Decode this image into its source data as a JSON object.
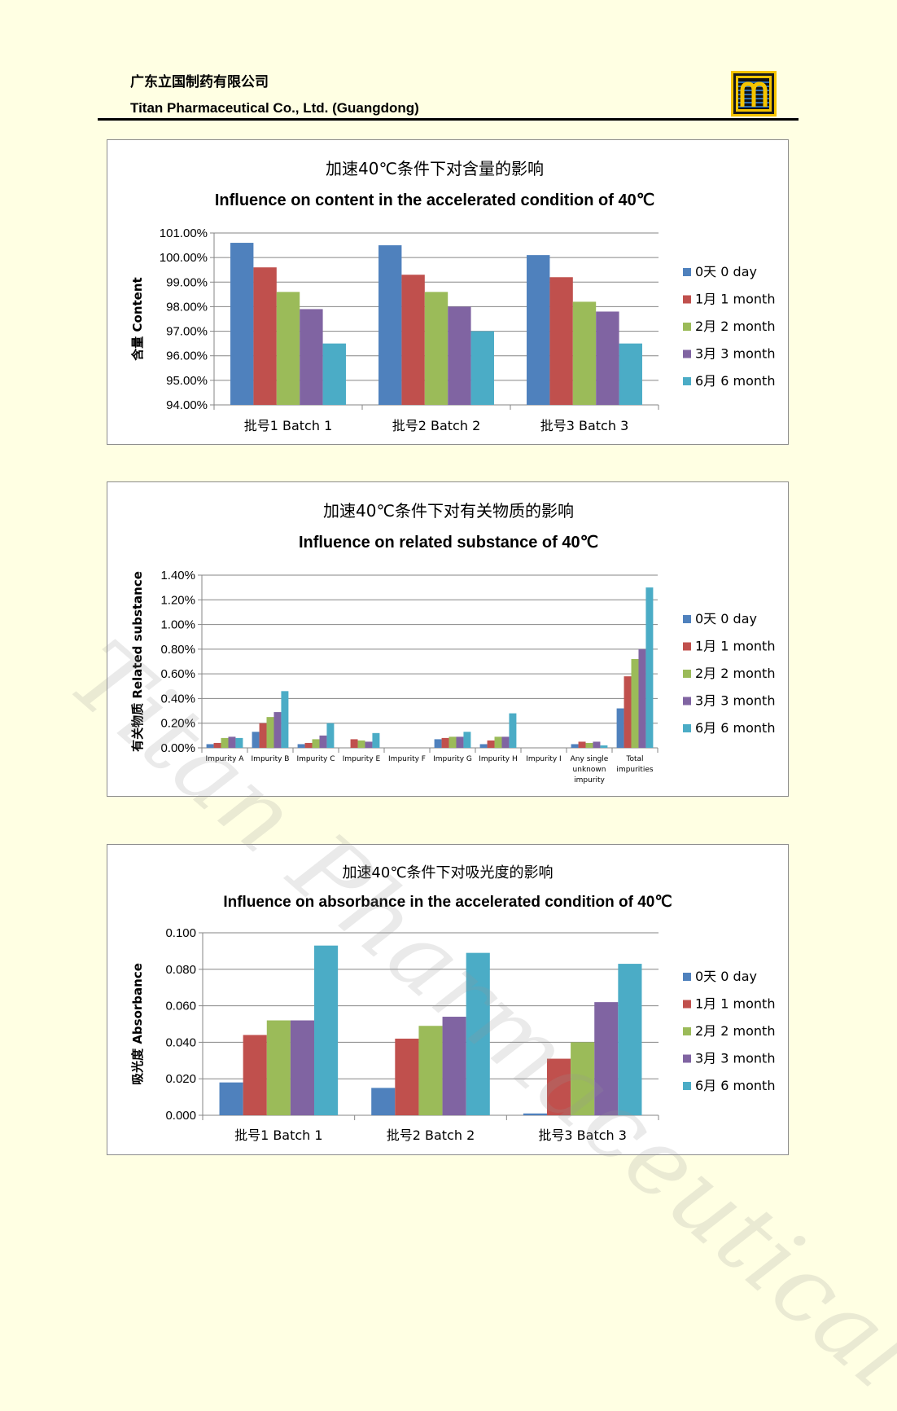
{
  "header": {
    "company_cn": "广东立国制药有限公司",
    "company_en": "Titan Pharmaceutical Co., Ltd. (Guangdong)"
  },
  "watermark": "Titan Pharmaceutical",
  "colors": [
    "#4F81BD",
    "#C0504D",
    "#9BBB59",
    "#8064A2",
    "#4BACC6"
  ],
  "chart_data": [
    {
      "type": "bar",
      "title": "加速40℃条件下对含量的影响",
      "subtitle": "Influence on content in the accelerated condition of 40℃",
      "ylabel": "含量 Content",
      "ylim": [
        94,
        101
      ],
      "yticks": [
        "94.00%",
        "95.00%",
        "96.00%",
        "97.00%",
        "98.00%",
        "99.00%",
        "100.00%",
        "101.00%"
      ],
      "categories": [
        "批号1 Batch 1",
        "批号2 Batch 2",
        "批号3 Batch 3"
      ],
      "legend_position": "right",
      "grid": true,
      "series": [
        {
          "name": "0天 0 day",
          "values": [
            100.6,
            100.5,
            100.1
          ]
        },
        {
          "name": "1月 1 month",
          "values": [
            99.6,
            99.3,
            99.2
          ]
        },
        {
          "name": "2月 2 month",
          "values": [
            98.6,
            98.6,
            98.2
          ]
        },
        {
          "name": "3月 3 month",
          "values": [
            97.9,
            98.0,
            97.8
          ]
        },
        {
          "name": "6月 6 month",
          "values": [
            96.5,
            97.0,
            96.5
          ]
        }
      ]
    },
    {
      "type": "bar",
      "title": "加速40℃条件下对有关物质的影响",
      "subtitle": "Influence on related substance of 40℃",
      "ylabel": "有关物质 Related substance",
      "ylim": [
        0,
        1.4
      ],
      "yticks": [
        "0.00%",
        "0.20%",
        "0.40%",
        "0.60%",
        "0.80%",
        "1.00%",
        "1.20%",
        "1.40%"
      ],
      "categories": [
        "Impurity A",
        "Impurity B",
        "Impurity C",
        "Impurity E",
        "Impurity F",
        "Impurity G",
        "Impurity H",
        "Impurity I",
        "Any single unknown impurity",
        "Total impurities"
      ],
      "legend_position": "right",
      "grid": true,
      "series": [
        {
          "name": "0天 0 day",
          "values": [
            0.03,
            0.13,
            0.03,
            0.0,
            0.0,
            0.07,
            0.03,
            0.0,
            0.03,
            0.32
          ]
        },
        {
          "name": "1月 1 month",
          "values": [
            0.04,
            0.2,
            0.04,
            0.07,
            0.0,
            0.08,
            0.06,
            0.0,
            0.05,
            0.58
          ]
        },
        {
          "name": "2月 2 month",
          "values": [
            0.08,
            0.25,
            0.07,
            0.06,
            0.0,
            0.09,
            0.09,
            0.0,
            0.04,
            0.72
          ]
        },
        {
          "name": "3月 3 month",
          "values": [
            0.09,
            0.29,
            0.1,
            0.05,
            0.0,
            0.09,
            0.09,
            0.0,
            0.05,
            0.8
          ]
        },
        {
          "name": "6月 6 month",
          "values": [
            0.08,
            0.46,
            0.2,
            0.12,
            0.0,
            0.13,
            0.28,
            0.0,
            0.02,
            1.3
          ]
        }
      ]
    },
    {
      "type": "bar",
      "title": "加速40℃条件下对吸光度的影响",
      "subtitle": "Influence on absorbance in the accelerated condition of 40℃",
      "ylabel": "吸光度 Absorbance",
      "ylim": [
        0,
        0.1
      ],
      "yticks": [
        "0.000",
        "0.020",
        "0.040",
        "0.060",
        "0.080",
        "0.100"
      ],
      "categories": [
        "批号1 Batch 1",
        "批号2 Batch 2",
        "批号3 Batch 3"
      ],
      "legend_position": "right",
      "grid": true,
      "series": [
        {
          "name": "0天 0 day",
          "values": [
            0.018,
            0.015,
            0.001
          ]
        },
        {
          "name": "1月 1 month",
          "values": [
            0.044,
            0.042,
            0.031
          ]
        },
        {
          "name": "2月 2 month",
          "values": [
            0.052,
            0.049,
            0.04
          ]
        },
        {
          "name": "3月 3 month",
          "values": [
            0.052,
            0.054,
            0.062
          ]
        },
        {
          "name": "6月 6 month",
          "values": [
            0.093,
            0.089,
            0.083
          ]
        }
      ]
    }
  ]
}
